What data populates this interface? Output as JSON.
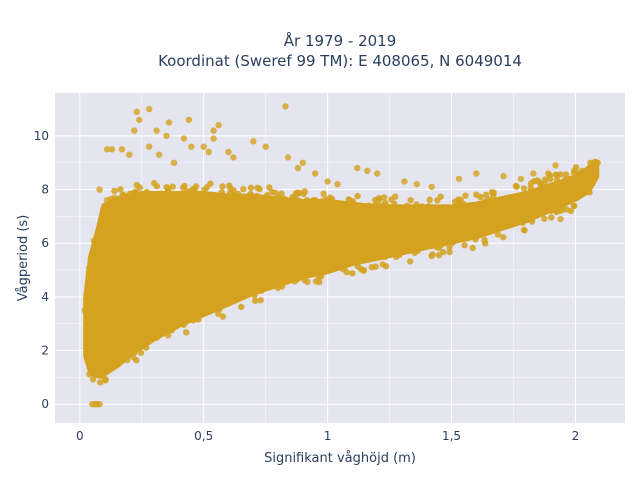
{
  "chart_data": {
    "type": "scatter",
    "title": "År 1979 - 2019",
    "subtitle": "Koordinat (Sweref 99 TM): E 408065, N 6049014",
    "xlabel": "Signifikant våghöjd (m)",
    "ylabel": "Vågperiod (s)",
    "xlim": [
      -0.1,
      2.2
    ],
    "ylim": [
      -0.7,
      11.6
    ],
    "grid": true,
    "legend": "none",
    "marker_color": "#d4a21f",
    "plot_background": "#e5e5f0",
    "x_ticks": [
      {
        "value": 0,
        "label": "0"
      },
      {
        "value": 0.5,
        "label": "0,5"
      },
      {
        "value": 1,
        "label": "1"
      },
      {
        "value": 1.5,
        "label": "1,5"
      },
      {
        "value": 2,
        "label": "2"
      }
    ],
    "y_ticks": [
      {
        "value": 0,
        "label": "0"
      },
      {
        "value": 2,
        "label": "2"
      },
      {
        "value": 4,
        "label": "4"
      },
      {
        "value": 6,
        "label": "6"
      },
      {
        "value": 8,
        "label": "8"
      },
      {
        "value": 10,
        "label": "10"
      }
    ],
    "envelope": {
      "x": [
        0.03,
        0.05,
        0.08,
        0.1,
        0.15,
        0.2,
        0.25,
        0.3,
        0.4,
        0.5,
        0.6,
        0.7,
        0.8,
        0.9,
        1.0,
        1.1,
        1.2,
        1.3,
        1.4,
        1.5,
        1.6,
        1.7,
        1.8,
        1.9,
        2.0,
        2.05,
        2.08
      ],
      "y_low": [
        1.8,
        1.2,
        1.1,
        1.2,
        1.5,
        1.9,
        2.2,
        2.5,
        3.0,
        3.4,
        3.8,
        4.2,
        4.5,
        4.8,
        5.0,
        5.3,
        5.5,
        5.7,
        5.9,
        6.1,
        6.3,
        6.6,
        6.9,
        7.3,
        7.7,
        8.0,
        8.5
      ],
      "y_high": [
        4.0,
        5.5,
        6.5,
        7.3,
        7.6,
        7.7,
        7.8,
        7.8,
        7.8,
        7.8,
        7.7,
        7.7,
        7.6,
        7.5,
        7.5,
        7.4,
        7.3,
        7.3,
        7.3,
        7.3,
        7.4,
        7.6,
        7.8,
        8.1,
        8.4,
        8.7,
        9.0
      ]
    },
    "points": [
      [
        0.23,
        10.9
      ],
      [
        0.28,
        11.0
      ],
      [
        0.24,
        10.6
      ],
      [
        0.22,
        10.2
      ],
      [
        0.83,
        11.1
      ],
      [
        0.44,
        10.6
      ],
      [
        0.36,
        10.5
      ],
      [
        0.31,
        10.2
      ],
      [
        0.35,
        10.0
      ],
      [
        0.56,
        10.4
      ],
      [
        0.54,
        10.2
      ],
      [
        0.54,
        9.9
      ],
      [
        0.42,
        9.9
      ],
      [
        0.45,
        9.6
      ],
      [
        0.5,
        9.6
      ],
      [
        0.6,
        9.4
      ],
      [
        0.52,
        9.4
      ],
      [
        0.62,
        9.2
      ],
      [
        0.84,
        9.2
      ],
      [
        0.75,
        9.6
      ],
      [
        0.7,
        9.8
      ],
      [
        0.9,
        9.0
      ],
      [
        0.11,
        9.5
      ],
      [
        0.13,
        9.5
      ],
      [
        0.17,
        9.5
      ],
      [
        0.2,
        9.3
      ],
      [
        0.28,
        9.6
      ],
      [
        0.32,
        9.3
      ],
      [
        0.38,
        9.0
      ],
      [
        0.88,
        8.8
      ],
      [
        1.12,
        8.8
      ],
      [
        1.16,
        8.7
      ],
      [
        1.2,
        8.6
      ],
      [
        1.04,
        8.2
      ],
      [
        1.31,
        8.3
      ],
      [
        1.36,
        8.2
      ],
      [
        1.42,
        8.1
      ],
      [
        1.53,
        8.4
      ],
      [
        1.6,
        8.6
      ],
      [
        1.71,
        8.5
      ],
      [
        1.78,
        8.4
      ],
      [
        1.83,
        8.6
      ],
      [
        1.89,
        8.6
      ],
      [
        1.92,
        8.9
      ],
      [
        1.96,
        8.4
      ],
      [
        2.01,
        8.6
      ],
      [
        2.06,
        9.0
      ],
      [
        2.09,
        9.0
      ],
      [
        2.04,
        8.0
      ],
      [
        1.94,
        6.9
      ],
      [
        1.65,
        6.5
      ],
      [
        0.05,
        0.0
      ],
      [
        0.06,
        0.0
      ],
      [
        0.07,
        0.0
      ],
      [
        0.08,
        0.0
      ],
      [
        0.08,
        4.1
      ],
      [
        0.02,
        3.5
      ],
      [
        0.05,
        4.4
      ],
      [
        0.12,
        6.8
      ],
      [
        0.11,
        7.6
      ],
      [
        0.14,
        7.7
      ],
      [
        0.08,
        8.0
      ],
      [
        0.1,
        7.4
      ],
      [
        1.0,
        8.3
      ],
      [
        0.95,
        8.6
      ]
    ]
  }
}
